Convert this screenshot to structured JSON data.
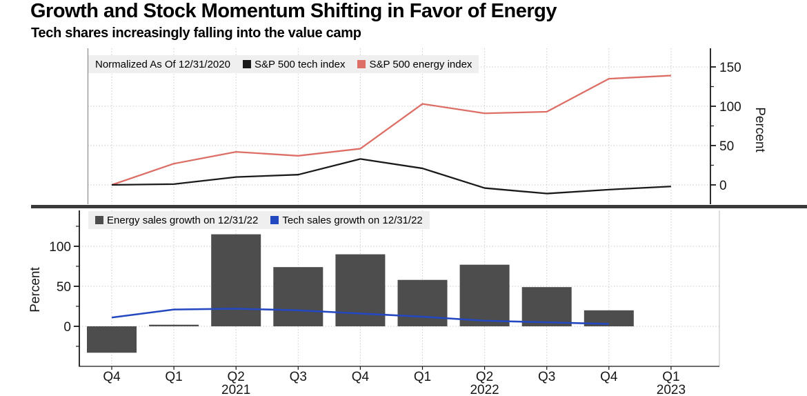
{
  "header": {
    "title": "Growth and Stock Momentum Shifting in Favor of Energy",
    "subtitle": "Tech shares increasingly falling into the value camp"
  },
  "chart_data": [
    {
      "type": "line",
      "panel": "top",
      "note": "Normalized As Of 12/31/2020",
      "categories": [
        "Q4",
        "Q1",
        "Q2",
        "Q3",
        "Q4",
        "Q1",
        "Q2",
        "Q3",
        "Q4",
        "Q1"
      ],
      "series": [
        {
          "name": "S&P 500 tech index",
          "color": "#1a1a1a",
          "values": [
            0,
            1,
            10,
            13,
            33,
            21,
            -4,
            -11,
            -6,
            -2
          ]
        },
        {
          "name": "S&P 500 energy index",
          "color": "#dd6e66",
          "values": [
            0,
            27,
            42,
            37,
            46,
            103,
            91,
            93,
            135,
            139
          ]
        }
      ],
      "ylabel": "Percent",
      "yticks": [
        0,
        50,
        100,
        150
      ],
      "yminorticks": [
        25,
        75,
        125
      ],
      "ylim": [
        -20,
        160
      ],
      "axis_side": "right",
      "grid": true,
      "legend_position": "top-left"
    },
    {
      "type": "bar+line",
      "panel": "bottom",
      "categories": [
        "Q4",
        "Q1",
        "Q2",
        "Q3",
        "Q4",
        "Q1",
        "Q2",
        "Q3",
        "Q4",
        "Q1"
      ],
      "year_labels": [
        "",
        "",
        "2021",
        "",
        "",
        "",
        "2022",
        "",
        "",
        "2023"
      ],
      "series": [
        {
          "name": "Energy sales growth on 12/31/22",
          "type": "bar",
          "color": "#4d4d4d",
          "values": [
            -33,
            2,
            115,
            74,
            90,
            58,
            77,
            49,
            20,
            null
          ]
        },
        {
          "name": "Tech sales growth on 12/31/22",
          "type": "line",
          "color": "#2448c0",
          "values": [
            11,
            21,
            22,
            20,
            16,
            12,
            7,
            5,
            3,
            null
          ]
        }
      ],
      "ylabel": "Percent",
      "yticks": [
        0,
        50,
        100
      ],
      "yminorticks": [
        125,
        75,
        25,
        -25
      ],
      "ylim": [
        -45,
        125
      ],
      "axis_side": "left",
      "grid": true,
      "legend_position": "top-left"
    }
  ],
  "colors": {
    "legend_bg": "#efefef",
    "divider": "#3a3a3a",
    "grid": "#c9c9c9",
    "axis": "#161616"
  }
}
